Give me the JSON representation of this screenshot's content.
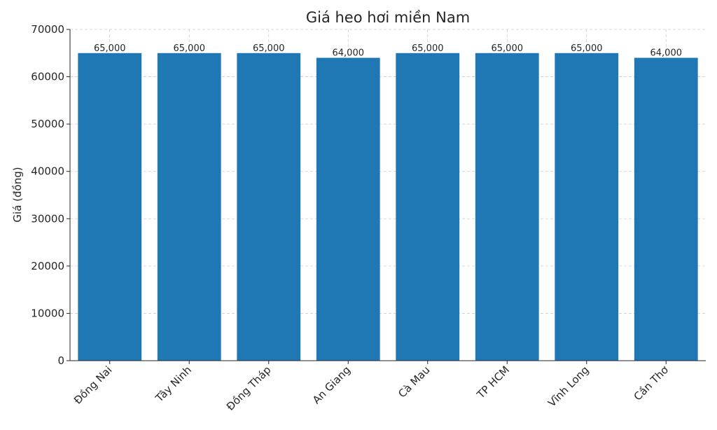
{
  "chart_data": {
    "type": "bar",
    "title": "Giá heo hơi miền Nam",
    "xlabel": "",
    "ylabel": "Giá (đồng)",
    "categories": [
      "Đồng Nai",
      "Tây Ninh",
      "Đồng Tháp",
      "An Giang",
      "Cà Mau",
      "TP HCM",
      "Vĩnh Long",
      "Cần Thơ"
    ],
    "values": [
      65000,
      65000,
      65000,
      64000,
      65000,
      65000,
      65000,
      64000
    ],
    "value_labels": [
      "65,000",
      "65,000",
      "65,000",
      "64,000",
      "65,000",
      "65,000",
      "65,000",
      "64,000"
    ],
    "yticks": [
      0,
      10000,
      20000,
      30000,
      40000,
      50000,
      60000,
      70000
    ],
    "ytick_labels": [
      "0",
      "10000",
      "20000",
      "30000",
      "40000",
      "50000",
      "60000",
      "70000"
    ],
    "ylim": [
      0,
      70000
    ],
    "grid": true,
    "bar_color": "#1f77b4"
  }
}
